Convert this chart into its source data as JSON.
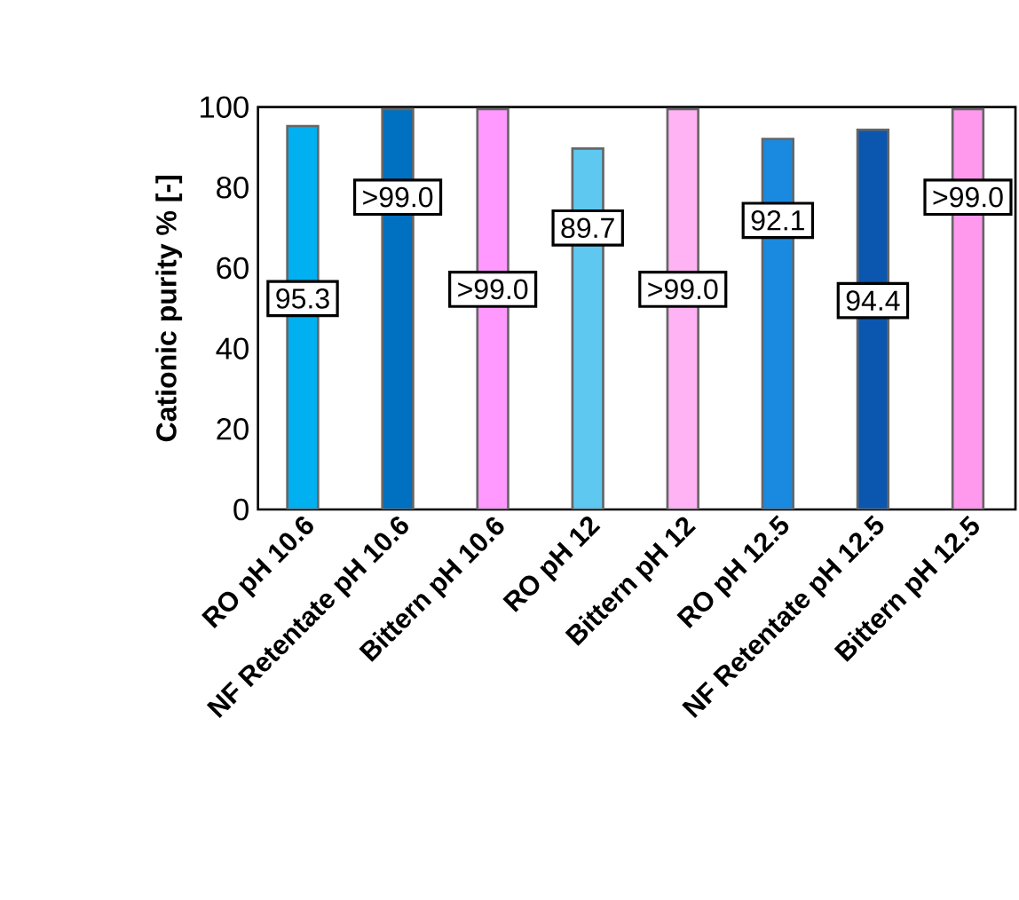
{
  "chart_data": {
    "type": "bar",
    "ylabel": "Cationic purity % [-]",
    "categories": [
      "RO pH 10.6",
      "NF Retentate pH 10.6",
      "Bittern pH 10.6",
      "RO pH 12",
      "Bittern pH 12",
      "RO pH 12.5",
      "NF Retentate pH 12.5",
      "Bittern pH 12.5"
    ],
    "values": [
      95.3,
      99.5,
      99.5,
      89.7,
      99.5,
      92.1,
      94.4,
      99.5
    ],
    "value_labels": [
      "95.3",
      ">99.0",
      ">99.0",
      "89.7",
      ">99.0",
      "92.1",
      "94.4",
      ">99.0"
    ],
    "colors": [
      "#00b0f0",
      "#0070c0",
      "#ff99ff",
      "#5fc8f0",
      "#ffb3f5",
      "#1a8ae0",
      "#0b57b0",
      "#ff99ee"
    ],
    "ylim": [
      0,
      100
    ],
    "yticks": [
      0,
      20,
      40,
      60,
      80,
      100
    ],
    "grid": false
  }
}
